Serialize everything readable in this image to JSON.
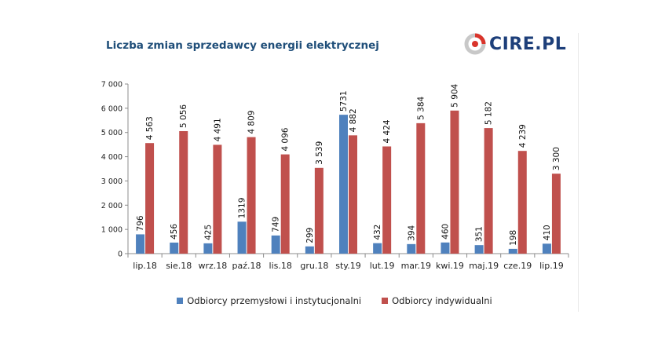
{
  "title": "Liczba zmian sprzedawcy energii elektrycznej",
  "logo": {
    "text": "CIRE.PL"
  },
  "chart_data": {
    "type": "bar",
    "title": "Liczba zmian sprzedawcy energii elektrycznej",
    "categories": [
      "lip.18",
      "sie.18",
      "wrz.18",
      "paź.18",
      "lis.18",
      "gru.18",
      "sty.19",
      "lut.19",
      "mar.19",
      "kwi.19",
      "maj.19",
      "cze.19",
      "lip.19"
    ],
    "series": [
      {
        "name": "Odbiorcy przemysłowi i instytucjonalni",
        "color": "#4f81bd",
        "values": [
          796,
          456,
          425,
          1319,
          749,
          299,
          5731,
          432,
          394,
          460,
          351,
          198,
          410
        ],
        "labels": [
          "796",
          "456",
          "425",
          "1319",
          "749",
          "299",
          "5731",
          "432",
          "394",
          "460",
          "351",
          "198",
          "410"
        ]
      },
      {
        "name": "Odbiorcy indywidualni",
        "color": "#c0504d",
        "values": [
          4563,
          5056,
          4491,
          4809,
          4096,
          3539,
          4882,
          4424,
          5384,
          5904,
          5182,
          4239,
          3300
        ],
        "labels": [
          "4 563",
          "5 056",
          "4 491",
          "4 809",
          "4 096",
          "3 539",
          "4 882",
          "4 424",
          "5 384",
          "5 904",
          "5 182",
          "4 239",
          "3 300"
        ]
      }
    ],
    "ylim": [
      0,
      7000
    ],
    "yticks": [
      0,
      1000,
      2000,
      3000,
      4000,
      5000,
      6000,
      7000
    ],
    "ytick_labels": [
      "0",
      "1 000",
      "2 000",
      "3 000",
      "4 000",
      "5 000",
      "6 000",
      "7 000"
    ],
    "grid": false,
    "legend_position": "bottom"
  }
}
